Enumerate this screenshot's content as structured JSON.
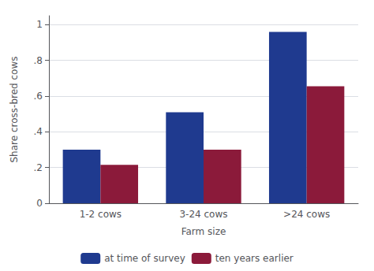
{
  "chart_data": {
    "type": "bar",
    "categories": [
      "1-2 cows",
      "3-24 cows",
      ">24 cows"
    ],
    "series": [
      {
        "name": "at time of survey",
        "color": "#1F3A8F",
        "values": [
          0.3,
          0.51,
          0.96
        ]
      },
      {
        "name": "ten years earlier",
        "color": "#8B1A3A",
        "values": [
          0.215,
          0.3,
          0.655
        ]
      }
    ],
    "xlabel": "Farm size",
    "ylabel": "Share cross-bred cows",
    "ylim": [
      0,
      1.05
    ],
    "yticks": [
      0,
      {
        "value": 0.2,
        "label": ".2"
      },
      {
        "value": 0.4,
        "label": ".4"
      },
      {
        "value": 0.6,
        "label": ".6"
      },
      {
        "value": 0.8,
        "label": ".8"
      },
      1
    ],
    "grid": true,
    "legend": "bottom"
  }
}
